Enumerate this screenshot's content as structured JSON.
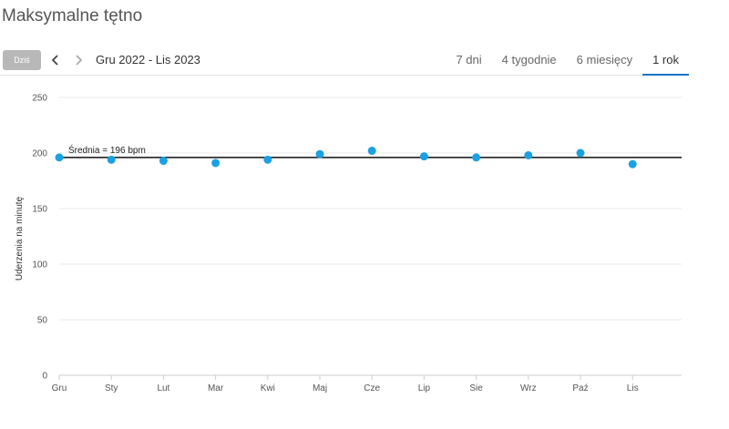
{
  "page": {
    "title": "Maksymalne tętno"
  },
  "toolbar": {
    "today_label": "Dziś",
    "prev_icon": "chevron-left-icon",
    "next_icon": "chevron-right-icon",
    "date_range": "Gru 2022 - Lis 2023",
    "tabs": [
      {
        "label": "7 dni",
        "active": false
      },
      {
        "label": "4 tygodnie",
        "active": false
      },
      {
        "label": "6 miesięcy",
        "active": false
      },
      {
        "label": "1 rok",
        "active": true
      }
    ]
  },
  "colors": {
    "point": "#1ba1e2",
    "average_line": "#111111",
    "grid": "#e8e8e8",
    "active_tab": "#1a73c8"
  },
  "chart_data": {
    "type": "scatter",
    "title": "",
    "xlabel": "",
    "ylabel": "Uderzenia na minutę",
    "categories": [
      "Gru",
      "Sty",
      "Lut",
      "Mar",
      "Kwi",
      "Maj",
      "Cze",
      "Lip",
      "Sie",
      "Wrz",
      "Paź",
      "Lis"
    ],
    "values": [
      196,
      194,
      193,
      191,
      194,
      199,
      202,
      197,
      196,
      198,
      200,
      190
    ],
    "ylim": [
      0,
      250
    ],
    "yticks": [
      0,
      50,
      100,
      150,
      200,
      250
    ],
    "grid": true,
    "average": {
      "value": 196,
      "label": "Średnia = 196 bpm"
    }
  }
}
